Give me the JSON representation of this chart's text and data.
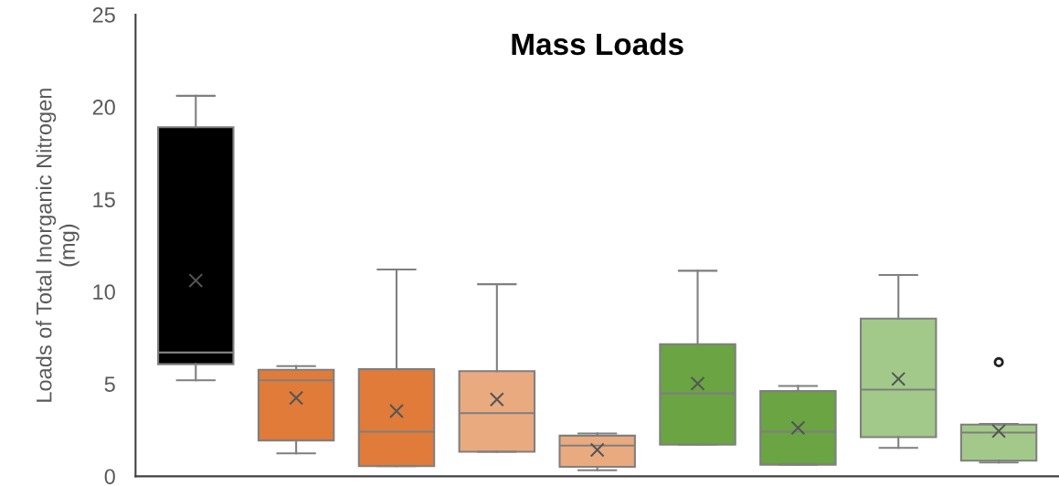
{
  "chart_data": {
    "type": "box",
    "title": "Mass Loads",
    "ylabel": "Loads of Total Inorganic Nitrogen\n(mg)",
    "categories": [
      null,
      null,
      null,
      null,
      null,
      null,
      null,
      null,
      null
    ],
    "boxes": [
      {
        "low": 5.2,
        "q1": 6.07,
        "median": 6.7,
        "q3": 18.9,
        "high": 20.6,
        "mean": 10.6
      },
      {
        "low": 1.24,
        "q1": 1.94,
        "median": 5.2,
        "q3": 5.77,
        "high": 5.97,
        "mean": 4.24
      },
      {
        "low": 0.55,
        "q1": 0.55,
        "median": 2.42,
        "q3": 5.8,
        "high": 11.2,
        "mean": 3.53
      },
      {
        "low": 1.33,
        "q1": 1.33,
        "median": 3.42,
        "q3": 5.69,
        "high": 10.4,
        "mean": 4.16
      },
      {
        "low": 0.33,
        "q1": 0.51,
        "median": 1.66,
        "q3": 2.2,
        "high": 2.32,
        "mean": 1.43
      },
      {
        "low": 1.71,
        "q1": 1.71,
        "median": 4.49,
        "q3": 7.15,
        "high": 11.13,
        "mean": 5.02
      },
      {
        "low": 0.63,
        "q1": 0.63,
        "median": 2.42,
        "q3": 4.61,
        "high": 4.89,
        "mean": 2.62
      },
      {
        "low": 1.54,
        "q1": 2.12,
        "median": 4.69,
        "q3": 8.54,
        "high": 10.9,
        "mean": 5.27
      },
      {
        "low": 0.75,
        "q1": 0.85,
        "median": 2.37,
        "q3": 2.8,
        "high": 2.84,
        "mean": 2.45,
        "outliers": [
          6.18
        ]
      }
    ],
    "colors": [
      "#000000",
      "#e07b39",
      "#e07b39",
      "#eaaa80",
      "#eaaa80",
      "#6aa443",
      "#6aa443",
      "#a3c98a",
      "#a3c98a"
    ],
    "ylim": [
      0,
      25
    ],
    "yticks": [
      0,
      5,
      10,
      15,
      20,
      25
    ],
    "tick_labels": "y",
    "grid": false
  }
}
